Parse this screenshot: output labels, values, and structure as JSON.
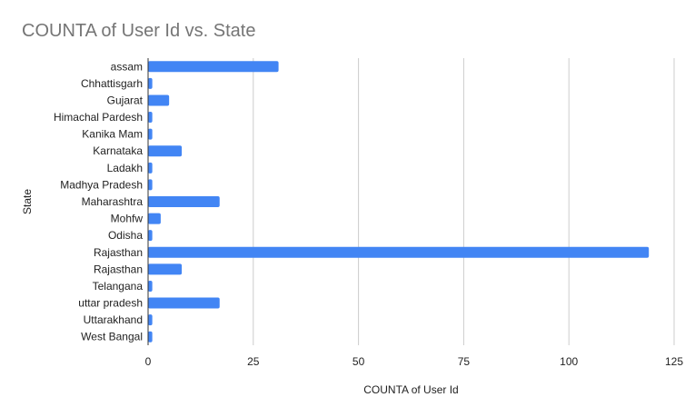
{
  "chart_data": {
    "type": "bar",
    "orientation": "horizontal",
    "title": "COUNTA of User Id vs. State",
    "xlabel": "COUNTA of User Id",
    "ylabel": "State",
    "categories": [
      "assam",
      "Chhattisgarh",
      "Gujarat",
      "Himachal Pardesh",
      "Kanika Mam",
      "Karnataka",
      "Ladakh",
      "Madhya Pradesh",
      "Maharashtra",
      "Mohfw",
      "Odisha",
      "Rajasthan",
      "Rajasthan",
      "Telangana",
      "uttar pradesh",
      "Uttarakhand",
      "West Bangal"
    ],
    "values": [
      31,
      1,
      5,
      1,
      1,
      8,
      1,
      1,
      17,
      3,
      1,
      119,
      8,
      1,
      17,
      1,
      1
    ],
    "xlim": [
      0,
      125
    ],
    "xticks": [
      0,
      25,
      50,
      75,
      100,
      125
    ],
    "grid": "vertical",
    "legend": "none",
    "bar_color": "#4285f4",
    "gridline_color": "#cccccc",
    "axis_color": "#333333"
  }
}
